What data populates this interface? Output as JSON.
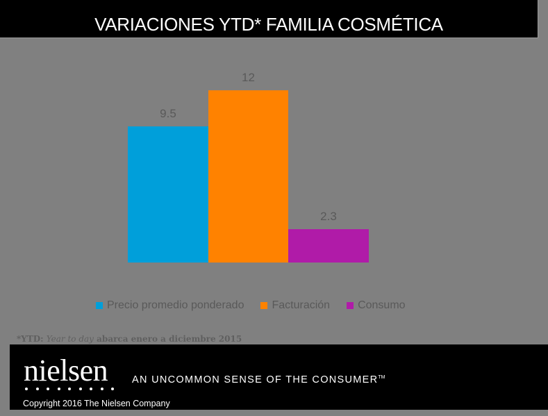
{
  "header": {
    "title": "VARIACIONES YTD* FAMILIA COSMÉTICA"
  },
  "chart_data": {
    "type": "bar",
    "title": "VARIACIONES YTD* FAMILIA COSMÉTICA",
    "categories": [
      "Precio promedio ponderado",
      "Facturación",
      "Consumo"
    ],
    "values": [
      9.5,
      12,
      2.3
    ],
    "value_labels": [
      "9.5",
      "12",
      "2.3"
    ],
    "colors": [
      "#009fda",
      "#ff8200",
      "#b01ba8"
    ],
    "xlabel": "",
    "ylabel": "",
    "ylim": [
      0,
      12
    ],
    "grid": false,
    "legend_position": "bottom",
    "legend": [
      "Precio promedio ponderado",
      "Facturación",
      "Consumo"
    ]
  },
  "footnote": {
    "prefix": "*YTD: ",
    "italic": "Year to day",
    "rest": " abarca enero a diciembre 2015"
  },
  "footer": {
    "logo": "nielsen",
    "tagline": "AN UNCOMMON SENSE OF THE CONSUMER",
    "trademark": "TM",
    "copyright": "Copyright 2016 The Nielsen Company"
  }
}
